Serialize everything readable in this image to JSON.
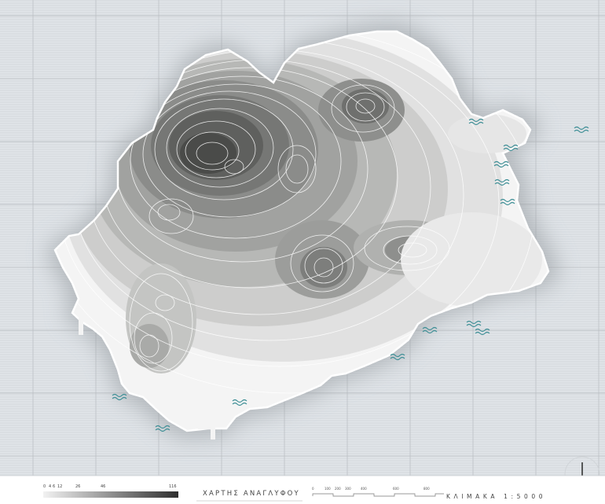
{
  "map": {
    "title": "ΧΑΡΤΗΣ ΑΝΑΓΛΥΦΟΥ",
    "scale_text": "ΚΛΙΜΑΚΑ 1:5000",
    "legend": {
      "tick_labels": [
        "0",
        "4",
        "6",
        "12",
        "26",
        "46",
        "116"
      ],
      "ramp_colors": [
        "#f2f2f2",
        "#2e2e2e"
      ]
    },
    "scale_bar": {
      "tick_labels": [
        "0",
        "100",
        "200",
        "300",
        "400",
        "600",
        "800"
      ]
    },
    "colors": {
      "sea": "#dfe3e7",
      "land_low": "#f4f4f4",
      "land_high": "#3c3d3b",
      "water_marks": "#3e8f96",
      "grid": "#b8bcc0"
    },
    "icons": [
      "north-arrow-icon",
      "wave-icon"
    ]
  }
}
